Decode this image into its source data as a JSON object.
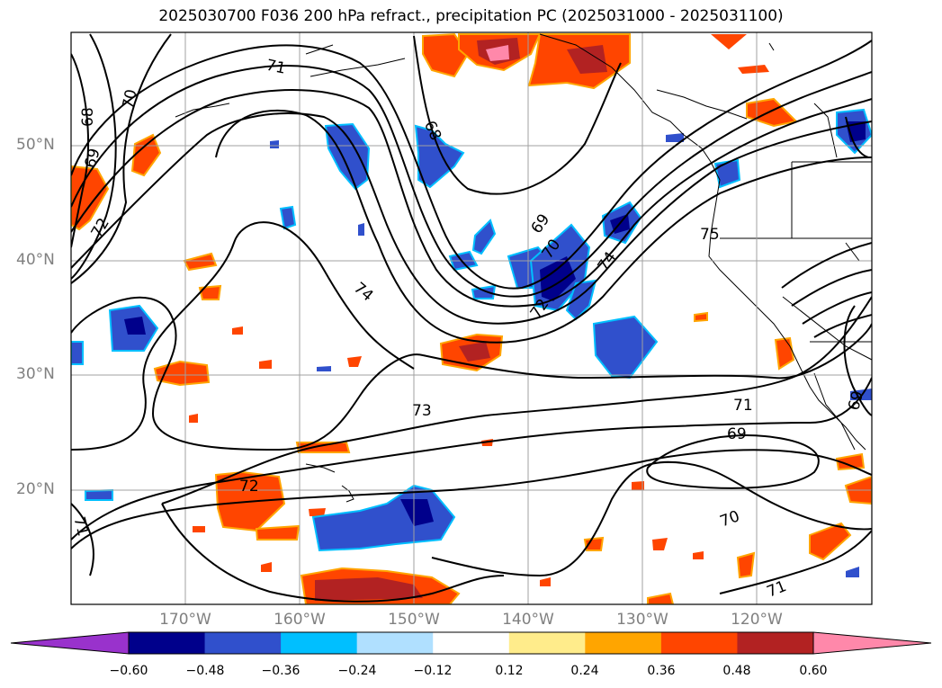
{
  "title": "2025030700 F036 200 hPa refract., precipitation PC (2025031000 - 2025031100)",
  "lat_labels": [
    "50°N",
    "40°N",
    "30°N",
    "20°N"
  ],
  "lon_labels": [
    "170°W",
    "160°W",
    "150°W",
    "140°W",
    "130°W",
    "120°W"
  ],
  "contour_labels": [
    "71",
    "70",
    "68",
    "69",
    "72",
    "68",
    "69",
    "70",
    "74",
    "74",
    "72",
    "75",
    "73",
    "71",
    "69",
    "72",
    "70",
    "71",
    "71",
    "69"
  ],
  "colorbar": {
    "ticks": [
      "−0.60",
      "−0.48",
      "−0.36",
      "−0.24",
      "−0.12",
      "0.12",
      "0.24",
      "0.36",
      "0.48",
      "0.60"
    ],
    "colors": [
      "#9932cc",
      "#00008b",
      "#3050cc",
      "#00bfff",
      "#b0e0ff",
      "#ffffff",
      "#ffec8b",
      "#ffa500",
      "#ff4500",
      "#b22222",
      "#ff88aa"
    ]
  },
  "colors": {
    "coast": "#000000",
    "grid": "#a0a0a0",
    "contour": "#000000"
  }
}
